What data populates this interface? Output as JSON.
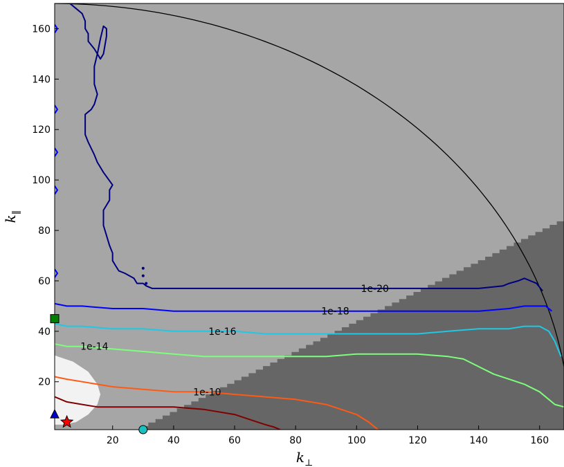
{
  "chart_data": {
    "type": "contour",
    "xlabel": "k",
    "xlabel_sub": "⊥",
    "ylabel": "k",
    "ylabel_sub": "‖",
    "xlim": [
      1,
      168
    ],
    "ylim": [
      1,
      170
    ],
    "xticks": [
      "20",
      "40",
      "60",
      "80",
      "100",
      "120",
      "140",
      "160"
    ],
    "yticks": [
      "20",
      "40",
      "60",
      "80",
      "100",
      "120",
      "140",
      "160"
    ],
    "grid": false,
    "regions": {
      "background_color": "#a6a6a6",
      "excluded_color": "#666666",
      "excluded_boundary": {
        "x": [
          27,
          168
        ],
        "y": [
          1,
          85
        ]
      },
      "inner_region_color": "#f2f2f2",
      "inner_region": {
        "x": [
          0,
          2,
          7,
          12,
          15,
          16,
          15,
          12,
          8,
          4,
          1
        ],
        "y": [
          31,
          30,
          28,
          24,
          19,
          15,
          11,
          7,
          4,
          3,
          3
        ]
      },
      "circle_radius": 170,
      "circle_color": "#000000"
    },
    "contours": [
      {
        "label": "1e-20",
        "color": "#00007f",
        "x": [
          6,
          8,
          10,
          11,
          11,
          12,
          12,
          14,
          15,
          16,
          17,
          18,
          18,
          17,
          16,
          15,
          14,
          14,
          15,
          14,
          13,
          11,
          11,
          11,
          12,
          14,
          15,
          16,
          17,
          20,
          19,
          19,
          18,
          17,
          17,
          18,
          19,
          20,
          20,
          21,
          22,
          24,
          27,
          28,
          30,
          31,
          33,
          40,
          50,
          60,
          70,
          80,
          90,
          100,
          110,
          120,
          130,
          140,
          148,
          150,
          153,
          155,
          157,
          159,
          161
        ],
        "y": [
          170,
          168,
          166,
          163,
          160,
          158,
          155,
          152,
          150,
          148,
          150,
          157,
          160,
          161,
          156,
          150,
          145,
          138,
          134,
          130,
          128,
          126,
          124,
          118,
          115,
          110,
          107,
          105,
          103,
          98,
          96,
          92,
          90,
          88,
          82,
          78,
          74,
          71,
          68,
          66,
          64,
          63,
          61,
          59,
          59,
          58,
          57,
          57,
          57,
          57,
          57,
          57,
          57,
          57,
          57,
          57,
          57,
          57,
          58,
          59,
          60,
          61,
          60,
          59,
          56
        ],
        "label_pos": [
          106,
          57
        ]
      },
      {
        "label": "1e-18",
        "color": "#0000ff",
        "x": [
          1,
          5,
          10,
          20,
          30,
          40,
          50,
          60,
          70,
          80,
          90,
          100,
          110,
          120,
          130,
          140,
          150,
          155,
          160,
          162,
          164
        ],
        "y": [
          51,
          50,
          50,
          49,
          49,
          48,
          48,
          48,
          48,
          48,
          48,
          48,
          48,
          48,
          48,
          48,
          49,
          50,
          50,
          50,
          48
        ],
        "label_pos": [
          93,
          48
        ]
      },
      {
        "label": "1e-16",
        "color": "#1ec8e6",
        "x": [
          1,
          5,
          10,
          20,
          30,
          40,
          50,
          60,
          70,
          80,
          90,
          100,
          110,
          120,
          130,
          140,
          150,
          155,
          160,
          163,
          165,
          167
        ],
        "y": [
          43,
          42,
          42,
          41,
          41,
          40,
          40,
          40,
          39,
          39,
          39,
          39,
          39,
          39,
          40,
          41,
          41,
          42,
          42,
          40,
          36,
          30
        ],
        "label_pos": [
          56,
          40
        ]
      },
      {
        "label": "1e-14",
        "color": "#7dff7d",
        "x": [
          1,
          5,
          10,
          20,
          30,
          40,
          50,
          60,
          70,
          80,
          90,
          100,
          110,
          120,
          130,
          135,
          140,
          145,
          150,
          155,
          160,
          163,
          165,
          168
        ],
        "y": [
          35,
          34,
          34,
          33,
          32,
          31,
          30,
          30,
          30,
          30,
          30,
          31,
          31,
          31,
          30,
          29,
          26,
          23,
          21,
          19,
          16,
          13,
          11,
          10
        ],
        "label_pos": [
          14,
          34
        ]
      },
      {
        "label": "1e-10",
        "color": "#ff5a14",
        "x": [
          1,
          5,
          10,
          15,
          20,
          30,
          40,
          50,
          60,
          70,
          80,
          90,
          95,
          100,
          104,
          107
        ],
        "y": [
          22,
          21,
          20,
          19,
          18,
          17,
          16,
          16,
          15,
          14,
          13,
          11,
          9,
          7,
          4,
          1
        ],
        "label_pos": [
          51,
          16
        ]
      },
      {
        "label": "",
        "color": "#800000",
        "x": [
          1,
          5,
          10,
          15,
          20,
          30,
          40,
          50,
          60,
          65,
          70,
          73,
          75
        ],
        "y": [
          14,
          12,
          11,
          10,
          10,
          10,
          10,
          9,
          7,
          5,
          3,
          2,
          1
        ],
        "label_pos": null
      }
    ],
    "left_edge_marks": {
      "color": "#0000ff",
      "y": [
        160,
        128,
        111,
        96,
        63
      ]
    },
    "dotted_marks": {
      "color": "#00007f",
      "x": [
        30,
        30,
        31
      ],
      "y": [
        65,
        62,
        59
      ]
    },
    "markers": [
      {
        "shape": "square",
        "color": "#008000",
        "x": 1,
        "y": 45
      },
      {
        "shape": "triangle",
        "color": "#0000cc",
        "x": 1,
        "y": 7
      },
      {
        "shape": "star",
        "color": "#ff0000",
        "x": 5,
        "y": 4
      },
      {
        "shape": "circle",
        "color": "#19c0c0",
        "x": 30,
        "y": 1
      }
    ]
  }
}
